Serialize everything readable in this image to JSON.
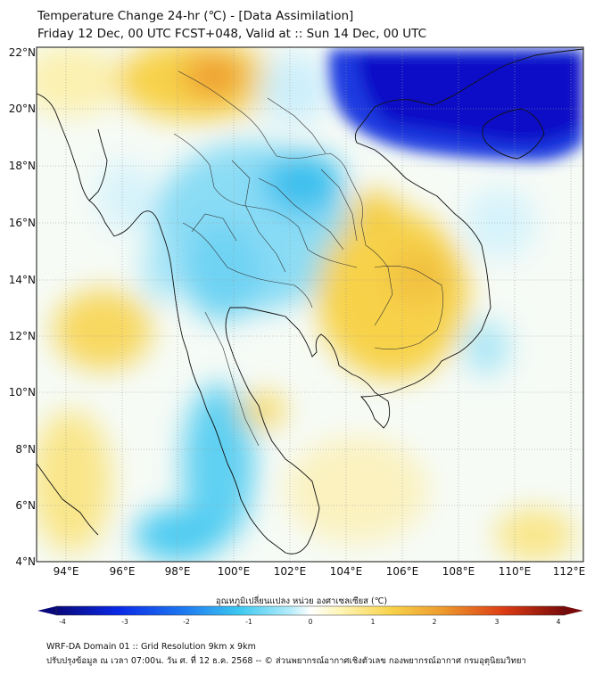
{
  "header": {
    "title_line1": "Temperature Change 24-hr (℃) - [Data Assimilation]",
    "title_line2": "Friday 12 Dec, 00 UTC FCST+048, Valid at :: Sun 14 Dec, 00 UTC"
  },
  "map": {
    "lat_labels": [
      "22°N",
      "20°N",
      "18°N",
      "16°N",
      "14°N",
      "12°N",
      "10°N",
      "8°N",
      "6°N",
      "4°N"
    ],
    "lon_labels": [
      "94°E",
      "96°E",
      "98°E",
      "100°E",
      "102°E",
      "104°E",
      "106°E",
      "108°E",
      "110°E",
      "112°E"
    ],
    "colors": {
      "strong_cool": "#0a10c8",
      "cool": "#3cc8f0",
      "light_cool": "#d2f2fb",
      "neutral": "#fbfdf8",
      "light_warm": "#fbf4c4",
      "warm": "#f7d24a",
      "hot": "#ed9a2e",
      "coast": "#111111",
      "border": "#333333"
    }
  },
  "colorbar": {
    "title": "อุณหภูมิเปลี่ยนแปลง หน่วย องศาเซลเซียส (℃)",
    "ticks": [
      "-4",
      "-3",
      "-2",
      "-1",
      "0",
      "1",
      "2",
      "3",
      "4"
    ],
    "stops": [
      "#08087a",
      "#0a28e6",
      "#1e78f0",
      "#3cc8f0",
      "#b4ecfa",
      "#ffffff",
      "#fff5b4",
      "#f7d24a",
      "#ed9a2e",
      "#dc3c14",
      "#780a0a"
    ]
  },
  "footer": {
    "line1": "WRF-DA Domain 01 :: Grid Resolution 9km x 9km",
    "line2": "ปรับปรุงข้อมูล ณ เวลา 07:00น. วัน ศ. ที่ 12 ธ.ค. 2568 -- © ส่วนพยากรณ์อากาศเชิงตัวเลข กองพยากรณ์อากาศ กรมอุตุนิยมวิทยา"
  }
}
